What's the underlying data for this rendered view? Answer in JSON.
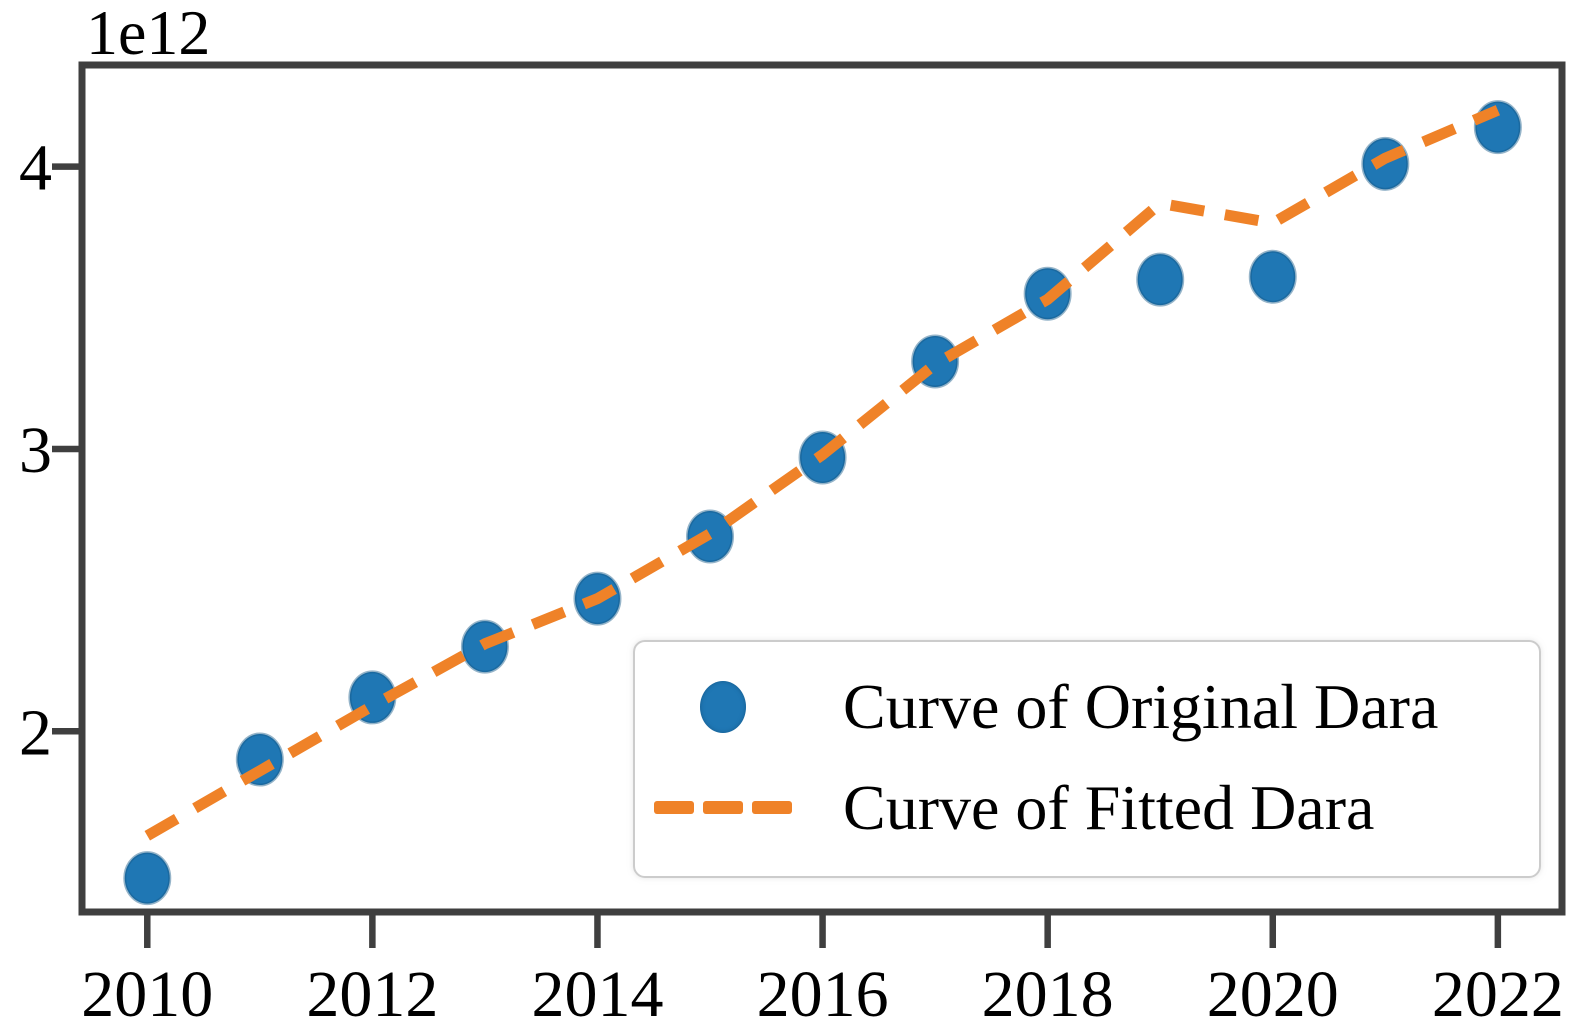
{
  "chart": {
    "legend": {
      "original": "Curve of Original Dara",
      "fitted": "Curve of Fitted Dara"
    },
    "colors": {
      "original_marker": "#1f77b4",
      "original_marker_edge": "rgba(21,88,135,0.45)",
      "fitted_line": "#ef8228",
      "spine": "#3f3f3f",
      "tick_label": "#000000",
      "legend_border": "#cccccc"
    }
  },
  "chart_data": {
    "type": "scatter",
    "title": "",
    "xlabel": "",
    "ylabel": "",
    "y_offset_label": "1e12",
    "grid": false,
    "legend_position": "lower right",
    "x": [
      2010,
      2011,
      2012,
      2013,
      2014,
      2015,
      2016,
      2017,
      2018,
      2019,
      2020,
      2021,
      2022
    ],
    "series": [
      {
        "name": "Curve of Original Dara",
        "style": "scatter",
        "color": "#1f77b4",
        "values_e12": [
          1.48,
          1.9,
          2.12,
          2.3,
          2.47,
          2.69,
          2.97,
          3.31,
          3.55,
          3.6,
          3.61,
          4.01,
          4.14
        ]
      },
      {
        "name": "Curve of Fitted Dara",
        "style": "dashed_line",
        "color": "#ef8228",
        "values_e12": [
          1.63,
          1.86,
          2.09,
          2.31,
          2.47,
          2.7,
          2.98,
          3.3,
          3.53,
          3.87,
          3.8,
          4.03,
          4.2
        ]
      }
    ],
    "x_ticks": {
      "values": [
        2010,
        2012,
        2014,
        2016,
        2018,
        2020,
        2022
      ],
      "labels": [
        "2010",
        "2012",
        "2014",
        "2016",
        "2018",
        "2020",
        "2022"
      ]
    },
    "y_ticks": {
      "values_e12": [
        2,
        3,
        4
      ],
      "labels": [
        "2",
        "3",
        "4"
      ]
    },
    "xlim": [
      2009.42,
      2022.57
    ],
    "ylim_e12": [
      1.36,
      4.36
    ]
  }
}
